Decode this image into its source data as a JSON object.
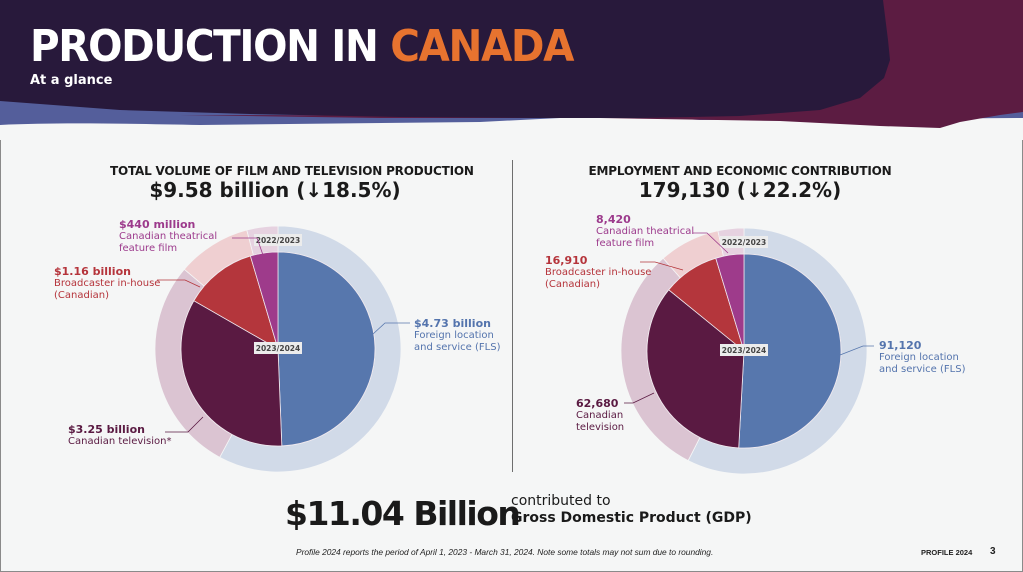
{
  "header": {
    "title_main": "PRODUCTION IN",
    "title_accent": "CANADA",
    "subtitle": "At a glance"
  },
  "colors": {
    "banner_dark": "#28193b",
    "banner_plum": "#5c1c42",
    "banner_blue": "#545e9b",
    "accent_orange": "#e7732f",
    "fls": "#5777ad",
    "tv": "#5a1a42",
    "broadcaster": "#b4363c",
    "theatrical": "#9e3b8b",
    "fls_prev": "#d1dae8",
    "tv_prev": "#dbc4d2",
    "broadcaster_prev": "#efcfd1",
    "theatrical_prev": "#e6d2e0"
  },
  "chart_data": [
    {
      "type": "pie",
      "title": "TOTAL VOLUME OF FILM AND TELEVISION PRODUCTION",
      "subtitle": "$9.58 billion (↓18.5%)",
      "inner_label": "2023/2024",
      "outer_label": "2022/2023",
      "unit": "billion CAD",
      "categories": [
        "Foreign location and service (FLS)",
        "Canadian television*",
        "Broadcaster in-house (Canadian)",
        "Canadian theatrical feature film"
      ],
      "series": [
        {
          "name": "2023/2024",
          "values": [
            4.73,
            3.25,
            1.16,
            0.44
          ]
        },
        {
          "name": "2022/2023",
          "values_share_pct": [
            56.7,
            27.8,
            9.5,
            4.0
          ]
        }
      ],
      "labels": [
        {
          "value": "$4.73 billion",
          "desc": [
            "Foreign location",
            "and service (FLS)"
          ]
        },
        {
          "value": "$3.25 billion",
          "desc": [
            "Canadian television*"
          ]
        },
        {
          "value": "$1.16 billion",
          "desc": [
            "Broadcaster in-house",
            "(Canadian)"
          ]
        },
        {
          "value": "$440 million",
          "desc": [
            "Canadian theatrical",
            "feature film"
          ]
        }
      ]
    },
    {
      "type": "pie",
      "title": "EMPLOYMENT AND ECONOMIC CONTRIBUTION",
      "subtitle": "179,130 (↓22.2%)",
      "inner_label": "2023/2024",
      "outer_label": "2022/2023",
      "unit": "jobs (FTEs)",
      "categories": [
        "Foreign location and service (FLS)",
        "Canadian television",
        "Broadcaster in-house (Canadian)",
        "Canadian theatrical feature film"
      ],
      "series": [
        {
          "name": "2023/2024",
          "values": [
            91120,
            62680,
            16910,
            8420
          ]
        },
        {
          "name": "2022/2023",
          "values_share_pct": [
            57.5,
            31.1,
            8.0,
            3.4
          ]
        }
      ],
      "labels": [
        {
          "value": "91,120",
          "desc": [
            "Foreign location",
            "and service (FLS)"
          ]
        },
        {
          "value": "62,680",
          "desc": [
            "Canadian",
            "television"
          ]
        },
        {
          "value": "16,910",
          "desc": [
            "Broadcaster in-house",
            "(Canadian)"
          ]
        },
        {
          "value": "8,420",
          "desc": [
            "Canadian theatrical",
            "feature film"
          ]
        }
      ]
    }
  ],
  "gdp": {
    "value": "$11.04 Billion",
    "line1": "contributed to",
    "line2": "Gross Domestic Product (GDP)"
  },
  "footer": {
    "note": "Profile 2024 reports the period of April 1, 2023 - March 31, 2024. Note some totals may not sum due to rounding.",
    "profile": "PROFILE 2024",
    "page": "3"
  }
}
